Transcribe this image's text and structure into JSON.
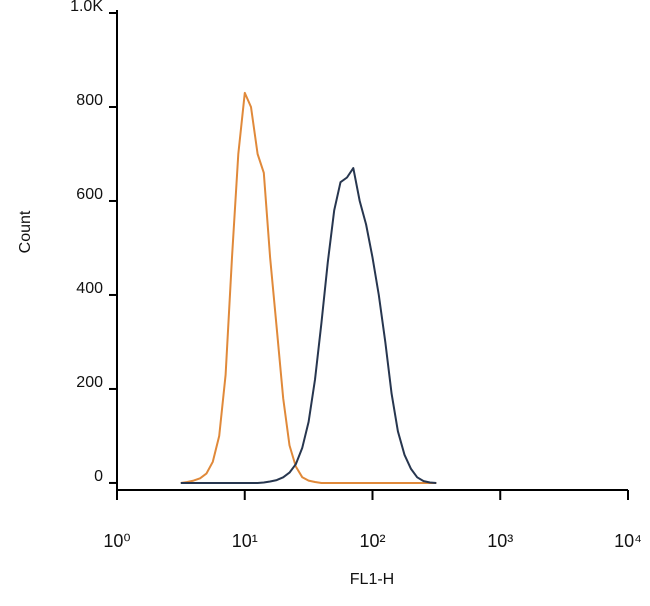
{
  "chart_data": {
    "type": "line",
    "x_label": "FL1-H",
    "y_label": "Count",
    "x": [
      3.16,
      3.55,
      3.98,
      4.47,
      5.01,
      5.62,
      6.31,
      7.08,
      7.94,
      8.91,
      10,
      11.2,
      12.6,
      14.1,
      15.8,
      17.8,
      20,
      22.4,
      25.1,
      28.2,
      31.6,
      35.5,
      39.8,
      44.7,
      50.1,
      56.2,
      63.1,
      70.8,
      79.4,
      89.1,
      100,
      112,
      126,
      141,
      158,
      178,
      200,
      224,
      251,
      282,
      316
    ],
    "series": [
      {
        "color": "#e0893a",
        "values": [
          0,
          2,
          5,
          10,
          20,
          45,
          100,
          230,
          480,
          700,
          830,
          800,
          700,
          660,
          480,
          330,
          180,
          80,
          35,
          12,
          5,
          2,
          0,
          0,
          0,
          0,
          0,
          0,
          0,
          0,
          0,
          0,
          0,
          0,
          0,
          0,
          0,
          0,
          0,
          0,
          0
        ]
      },
      {
        "color": "#27364f",
        "values": [
          0,
          0,
          0,
          0,
          0,
          0,
          0,
          0,
          0,
          0,
          0,
          0,
          0,
          1,
          3,
          6,
          12,
          22,
          40,
          75,
          130,
          220,
          340,
          470,
          580,
          640,
          650,
          670,
          600,
          550,
          480,
          400,
          300,
          190,
          110,
          60,
          30,
          12,
          4,
          1,
          0
        ]
      }
    ],
    "xscale": "log",
    "xlim": [
      1,
      10000
    ],
    "xticks": [
      {
        "value": 1,
        "label": "10⁰"
      },
      {
        "value": 10,
        "label": "10¹"
      },
      {
        "value": 100,
        "label": "10²"
      },
      {
        "value": 1000,
        "label": "10³"
      },
      {
        "value": 10000,
        "label": "10⁴"
      }
    ],
    "ylim": [
      -15,
      1000
    ],
    "yticks": [
      0,
      200,
      400,
      600,
      800,
      {
        "value": 1000,
        "label": "1.0K"
      }
    ]
  }
}
